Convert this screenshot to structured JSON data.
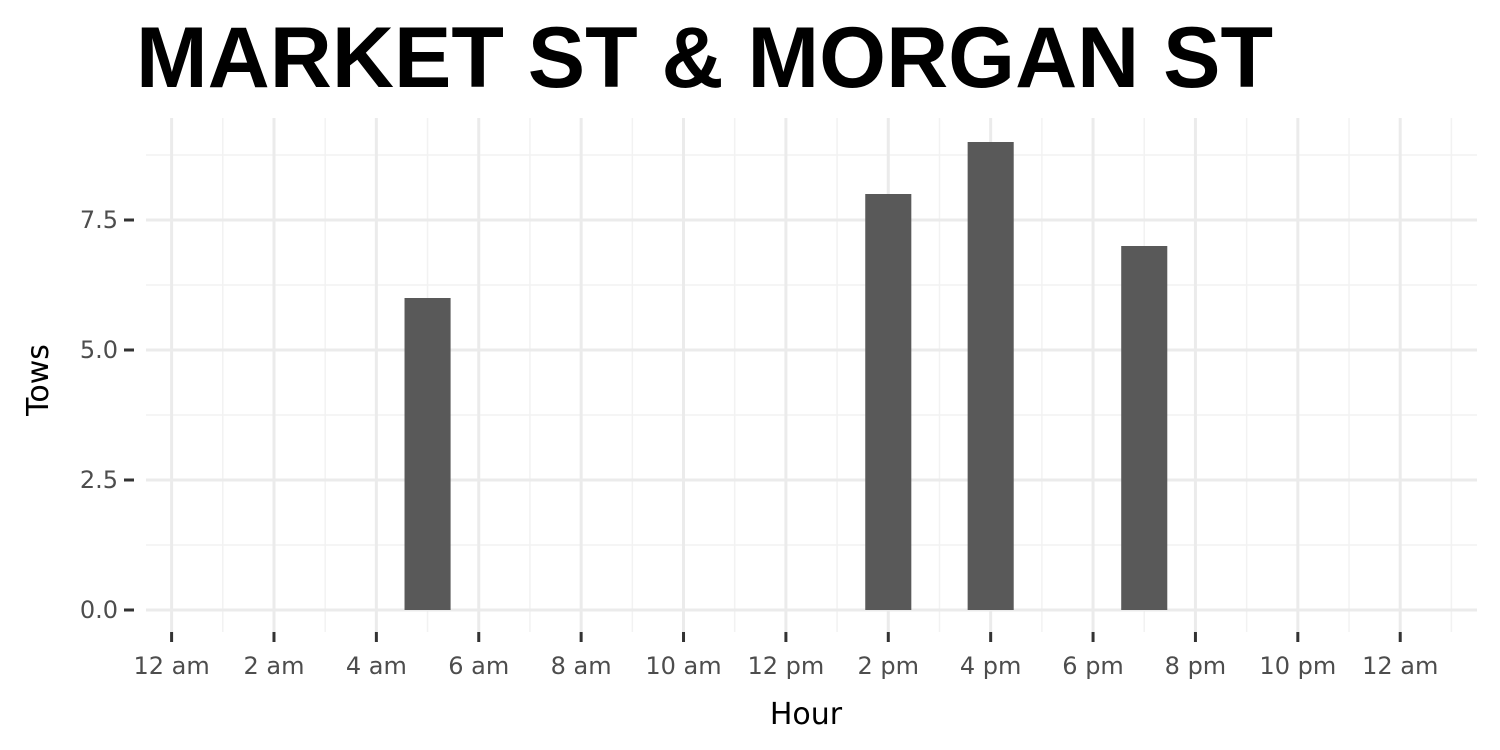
{
  "chart_data": {
    "type": "bar",
    "title": "MARKET ST & MORGAN ST",
    "xlabel": "Hour",
    "ylabel": "Tows",
    "x": [
      5,
      14,
      16,
      19
    ],
    "values": [
      6,
      8,
      9,
      7
    ],
    "xlim": [
      -0.5,
      25.5
    ],
    "ylim": [
      0,
      9
    ],
    "x_ticks": [
      0,
      2,
      4,
      6,
      8,
      10,
      12,
      14,
      16,
      18,
      20,
      22,
      24
    ],
    "x_tick_labels": [
      "12 am",
      "2 am",
      "4 am",
      "6 am",
      "8 am",
      "10 am",
      "12 pm",
      "2 pm",
      "4 pm",
      "6 pm",
      "8 pm",
      "10 pm",
      "12 am"
    ],
    "y_ticks": [
      0,
      2.5,
      5,
      7.5
    ],
    "y_tick_labels": [
      "0.0",
      "2.5",
      "5.0",
      "7.5"
    ],
    "grid": true,
    "legend": "none",
    "colors": {
      "bar": "#595959",
      "grid_major": "#ebebeb",
      "grid_minor": "#f2f2f2",
      "tick_mark": "#333333",
      "tick_text": "#4d4d4d",
      "background": "#ffffff"
    }
  }
}
